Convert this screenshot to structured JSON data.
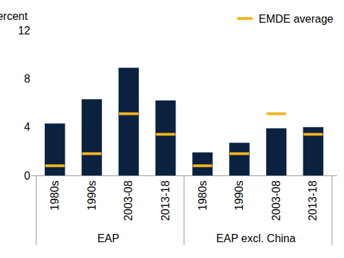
{
  "chart_data": {
    "type": "bar",
    "ylabel": "Percent",
    "groups": [
      "EAP",
      "EAP",
      "EAP",
      "EAP",
      "EAP excl. China",
      "EAP excl. China",
      "EAP excl. China",
      "EAP excl. China"
    ],
    "categories": [
      "1980s",
      "1990s",
      "2003-08",
      "2013-18",
      "1980s",
      "1990s",
      "2003-08",
      "2013-18"
    ],
    "series": [
      {
        "type": "bar",
        "color": "#0a2240",
        "values": [
          4.3,
          6.3,
          8.9,
          6.2,
          1.9,
          2.7,
          3.9,
          4.0
        ]
      },
      {
        "name": "EMDE average",
        "type": "scatter",
        "marker": "dash",
        "color": "#f5b31b",
        "values": [
          0.8,
          1.8,
          5.1,
          3.4,
          0.8,
          1.8,
          5.1,
          3.4
        ]
      }
    ],
    "ylim": [
      0,
      12
    ],
    "yticks": [
      0,
      4,
      8,
      12
    ],
    "grid": false,
    "legend": "top right"
  }
}
